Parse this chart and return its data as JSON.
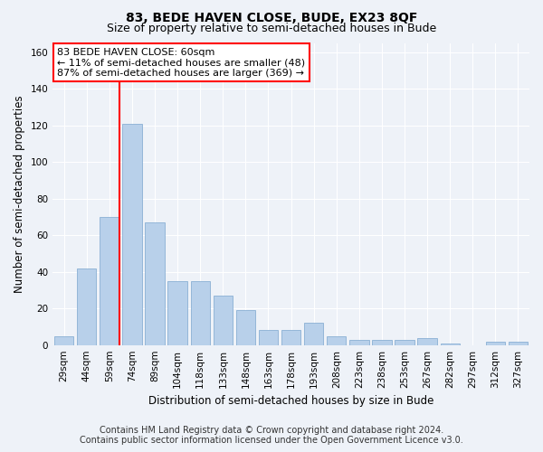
{
  "title": "83, BEDE HAVEN CLOSE, BUDE, EX23 8QF",
  "subtitle": "Size of property relative to semi-detached houses in Bude",
  "xlabel": "Distribution of semi-detached houses by size in Bude",
  "ylabel": "Number of semi-detached properties",
  "categories": [
    "29sqm",
    "44sqm",
    "59sqm",
    "74sqm",
    "89sqm",
    "104sqm",
    "118sqm",
    "133sqm",
    "148sqm",
    "163sqm",
    "178sqm",
    "193sqm",
    "208sqm",
    "223sqm",
    "238sqm",
    "253sqm",
    "267sqm",
    "282sqm",
    "297sqm",
    "312sqm",
    "327sqm"
  ],
  "values": [
    5,
    42,
    70,
    121,
    67,
    35,
    35,
    27,
    19,
    8,
    8,
    12,
    5,
    3,
    3,
    3,
    4,
    1,
    0,
    2,
    2
  ],
  "bar_color": "#b8d0ea",
  "bar_edge_color": "#8ab0d4",
  "annotation_title": "83 BEDE HAVEN CLOSE: 60sqm",
  "annotation_line1": "← 11% of semi-detached houses are smaller (48)",
  "annotation_line2": "87% of semi-detached houses are larger (369) →",
  "ylim": [
    0,
    165
  ],
  "yticks": [
    0,
    20,
    40,
    60,
    80,
    100,
    120,
    140,
    160
  ],
  "footer1": "Contains HM Land Registry data © Crown copyright and database right 2024.",
  "footer2": "Contains public sector information licensed under the Open Government Licence v3.0.",
  "background_color": "#eef2f8",
  "plot_bg_color": "#eef2f8",
  "grid_color": "#ffffff",
  "title_fontsize": 10,
  "subtitle_fontsize": 9,
  "label_fontsize": 8.5,
  "tick_fontsize": 7.5,
  "annotation_fontsize": 8,
  "footer_fontsize": 7
}
